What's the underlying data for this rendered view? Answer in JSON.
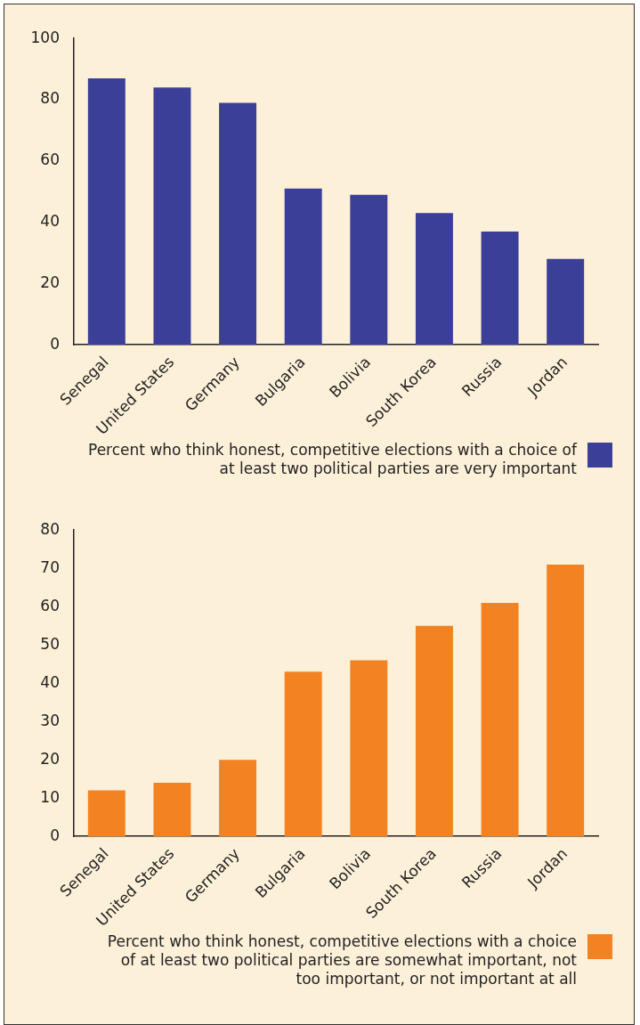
{
  "chart_data": [
    {
      "type": "bar",
      "categories": [
        "Senegal",
        "United States",
        "Germany",
        "Bulgaria",
        "Bolivia",
        "South Korea",
        "Russia",
        "Jordan"
      ],
      "series": [
        {
          "name": "Percent who think honest, competitive elections with a choice of at least two political parties are very important",
          "color": "#3c3f97",
          "values": [
            87,
            84,
            79,
            51,
            49,
            43,
            37,
            28
          ]
        }
      ],
      "ylim": [
        0,
        100
      ],
      "yticks": [
        0,
        20,
        40,
        60,
        80,
        100
      ],
      "legend": "bottom right"
    },
    {
      "type": "bar",
      "categories": [
        "Senegal",
        "United States",
        "Germany",
        "Bulgaria",
        "Bolivia",
        "South Korea",
        "Russia",
        "Jordan"
      ],
      "series": [
        {
          "name": "Percent who think honest, competitive elections with a choice of at least two political parties are somewhat important, not too important, or not important at all",
          "color": "#f38322",
          "values": [
            12,
            14,
            20,
            43,
            46,
            55,
            61,
            71
          ]
        }
      ],
      "ylim": [
        0,
        80
      ],
      "yticks": [
        0,
        10,
        20,
        30,
        40,
        50,
        60,
        70,
        80
      ],
      "legend": "bottom right"
    }
  ]
}
